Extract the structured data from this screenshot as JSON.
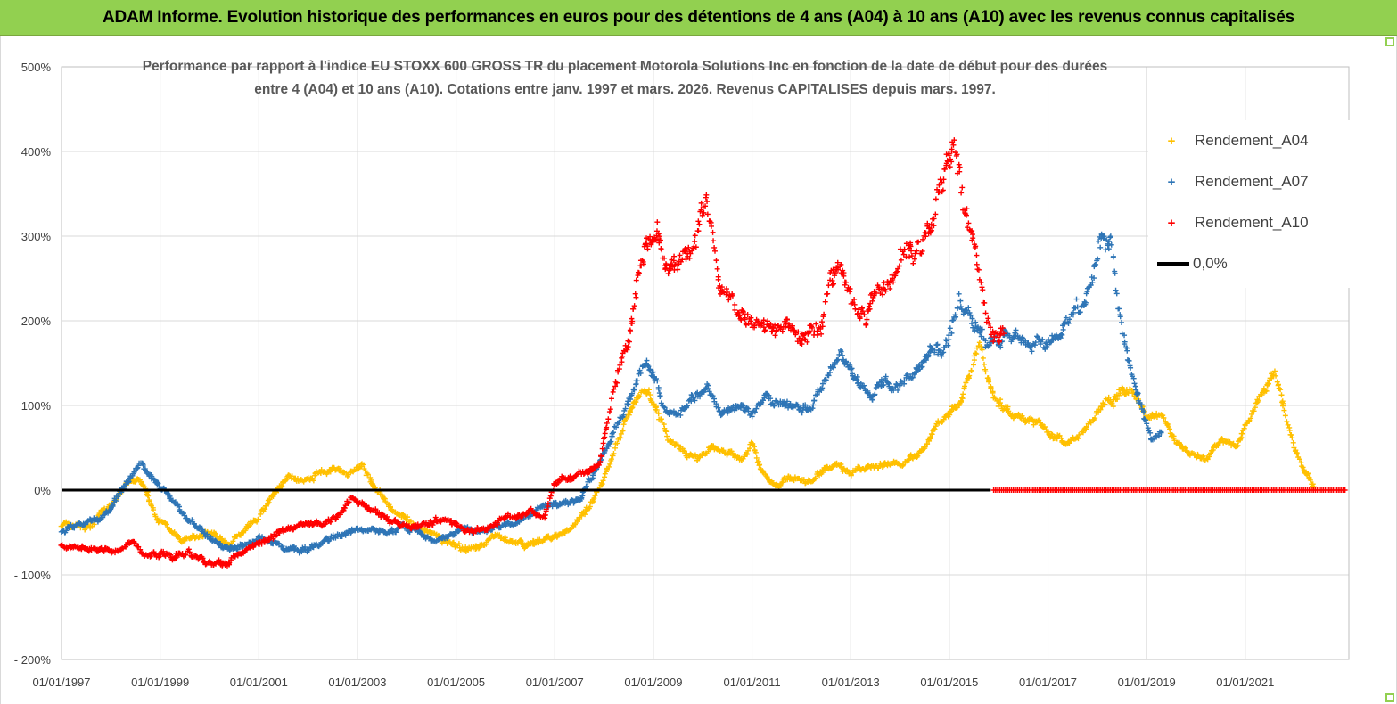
{
  "banner": {
    "title": "ADAM Informe. Evolution historique des performances en euros pour des détentions de 4 ans (A04) à 10 ans (A10) avec les revenus connus capitalisés"
  },
  "colors": {
    "banner_bg": "#92d050",
    "a04": "#ffc000",
    "a07": "#2e75b6",
    "a10": "#ff0000",
    "zero_line": "#000000",
    "grid": "#d9d9d9"
  },
  "chart_data": {
    "type": "scatter",
    "title_lines": [
      "Performance par rapport à l'indice EU STOXX 600 GROSS TR  du placement Motorola Solutions Inc en fonction de la date de début pour des durées",
      "entre 4 (A04) et 10 ans (A10). Cotations entre janv. 1997 et mars. 2026. Revenus CAPITALISES depuis mars. 1997."
    ],
    "ylim": [
      -200,
      500
    ],
    "yticks": [
      500,
      400,
      300,
      200,
      100,
      0,
      -100,
      -200
    ],
    "ytick_labels": [
      "500%",
      "400%",
      "300%",
      "200%",
      "100%",
      "0%",
      "- 100%",
      "- 200%"
    ],
    "xlim": [
      1997.0,
      2023.1
    ],
    "xticks": [
      1997,
      1999,
      2001,
      2003,
      2005,
      2007,
      2009,
      2011,
      2013,
      2015,
      2017,
      2019,
      2021
    ],
    "xtick_labels": [
      "01/01/1997",
      "01/01/1999",
      "01/01/2001",
      "01/01/2003",
      "01/01/2005",
      "01/01/2007",
      "01/01/2009",
      "01/01/2011",
      "01/01/2013",
      "01/01/2015",
      "01/01/2017",
      "01/01/2019",
      "01/01/2021"
    ],
    "legend_position": "top-right",
    "series": [
      {
        "name": "Rendement_A04",
        "key": "a04",
        "x": [
          1997.0,
          1997.5,
          1998.0,
          1998.3,
          1998.6,
          1998.9,
          1999.2,
          1999.5,
          1999.8,
          2000.1,
          2000.4,
          2000.7,
          2001.0,
          2001.3,
          2001.6,
          2001.9,
          2002.2,
          2002.5,
          2002.8,
          2003.1,
          2003.4,
          2003.7,
          2004.0,
          2004.3,
          2004.6,
          2004.9,
          2005.2,
          2005.5,
          2005.8,
          2006.1,
          2006.4,
          2006.7,
          2007.0,
          2007.3,
          2007.6,
          2007.9,
          2008.1,
          2008.3,
          2008.5,
          2008.7,
          2008.9,
          2009.1,
          2009.3,
          2009.6,
          2009.9,
          2010.2,
          2010.5,
          2010.8,
          2011.0,
          2011.2,
          2011.5,
          2011.8,
          2012.1,
          2012.4,
          2012.7,
          2013.0,
          2013.3,
          2013.6,
          2013.9,
          2014.2,
          2014.5,
          2014.8,
          2015.0,
          2015.2,
          2015.4,
          2015.6,
          2015.9,
          2016.2,
          2016.5,
          2016.8,
          2017.1,
          2017.4,
          2017.7,
          2017.9,
          2018.1,
          2018.4,
          2018.7,
          2019.0,
          2019.3,
          2019.6,
          2019.9,
          2020.2,
          2020.5,
          2020.8,
          2021.0,
          2021.2,
          2021.4,
          2021.6,
          2021.8,
          2022.0,
          2022.2,
          2022.4
        ],
        "y": [
          -40,
          -45,
          -20,
          5,
          10,
          -30,
          -50,
          -60,
          -55,
          -50,
          -65,
          -45,
          -30,
          -5,
          15,
          10,
          20,
          25,
          15,
          30,
          0,
          -20,
          -35,
          -45,
          -55,
          -65,
          -70,
          -65,
          -55,
          -60,
          -65,
          -60,
          -55,
          -45,
          -25,
          0,
          30,
          60,
          90,
          110,
          120,
          95,
          60,
          45,
          35,
          50,
          45,
          35,
          55,
          20,
          5,
          15,
          10,
          20,
          30,
          20,
          25,
          30,
          30,
          35,
          50,
          80,
          90,
          100,
          140,
          170,
          110,
          95,
          85,
          80,
          65,
          55,
          70,
          85,
          100,
          110,
          120,
          85,
          90,
          55,
          45,
          35,
          60,
          50,
          75,
          100,
          120,
          140,
          90,
          50,
          20,
          5
        ]
      },
      {
        "name": "Rendement_A07",
        "key": "a07",
        "x": [
          1997.0,
          1997.4,
          1997.8,
          1998.1,
          1998.4,
          1998.6,
          1998.9,
          1999.2,
          1999.5,
          1999.8,
          2000.1,
          2000.4,
          2000.7,
          2001.0,
          2001.3,
          2001.6,
          2001.9,
          2002.2,
          2002.5,
          2002.8,
          2003.0,
          2003.3,
          2003.6,
          2003.9,
          2004.2,
          2004.5,
          2004.8,
          2005.1,
          2005.4,
          2005.7,
          2006.0,
          2006.3,
          2006.6,
          2006.9,
          2007.2,
          2007.5,
          2007.8,
          2008.0,
          2008.2,
          2008.4,
          2008.6,
          2008.8,
          2009.0,
          2009.2,
          2009.5,
          2009.8,
          2010.1,
          2010.4,
          2010.7,
          2011.0,
          2011.3,
          2011.6,
          2011.9,
          2012.2,
          2012.5,
          2012.8,
          2013.1,
          2013.4,
          2013.7,
          2014.0,
          2014.3,
          2014.6,
          2014.9,
          2015.2,
          2015.5,
          2015.8,
          2016.1,
          2016.4,
          2016.7,
          2017.0,
          2017.3,
          2017.6,
          2017.9,
          2018.1,
          2018.3,
          2018.5,
          2018.7,
          2018.9,
          2019.1,
          2019.3
        ],
        "y": [
          -50,
          -40,
          -35,
          -10,
          15,
          30,
          10,
          -10,
          -30,
          -45,
          -60,
          -70,
          -65,
          -55,
          -60,
          -70,
          -70,
          -65,
          -55,
          -50,
          -45,
          -45,
          -50,
          -40,
          -50,
          -60,
          -55,
          -45,
          -50,
          -45,
          -40,
          -35,
          -25,
          -20,
          -15,
          -10,
          20,
          45,
          70,
          90,
          120,
          150,
          140,
          100,
          90,
          110,
          120,
          90,
          100,
          90,
          110,
          100,
          100,
          95,
          130,
          160,
          130,
          110,
          130,
          120,
          140,
          170,
          160,
          230,
          200,
          170,
          180,
          180,
          170,
          175,
          190,
          210,
          240,
          300,
          280,
          190,
          130,
          100,
          60,
          70
        ]
      },
      {
        "name": "Rendement_A10",
        "key": "a10",
        "x": [
          1997.0,
          1997.4,
          1997.8,
          1998.1,
          1998.4,
          1998.7,
          1999.0,
          1999.3,
          1999.6,
          1999.9,
          2000.2,
          2000.5,
          2000.8,
          2001.1,
          2001.4,
          2001.7,
          2002.0,
          2002.3,
          2002.6,
          2002.9,
          2003.2,
          2003.5,
          2003.8,
          2004.1,
          2004.4,
          2004.7,
          2005.0,
          2005.3,
          2005.6,
          2005.9,
          2006.2,
          2006.5,
          2006.8,
          2007.0,
          2007.3,
          2007.6,
          2007.9,
          2008.1,
          2008.3,
          2008.5,
          2008.7,
          2008.9,
          2009.1,
          2009.3,
          2009.6,
          2009.9,
          2010.1,
          2010.3,
          2010.6,
          2010.9,
          2011.2,
          2011.5,
          2011.8,
          2012.1,
          2012.4,
          2012.6,
          2012.8,
          2013.0,
          2013.3,
          2013.6,
          2013.9,
          2014.1,
          2014.3,
          2014.5,
          2014.7,
          2014.9,
          2015.1,
          2015.3,
          2015.5,
          2015.7,
          2015.9,
          2016.1
        ],
        "y": [
          -65,
          -70,
          -70,
          -70,
          -60,
          -75,
          -75,
          -80,
          -75,
          -85,
          -85,
          -80,
          -70,
          -60,
          -50,
          -45,
          -40,
          -40,
          -30,
          -10,
          -20,
          -30,
          -40,
          -45,
          -40,
          -35,
          -40,
          -50,
          -45,
          -35,
          -30,
          -25,
          -30,
          10,
          15,
          20,
          30,
          90,
          140,
          180,
          250,
          290,
          310,
          250,
          270,
          300,
          340,
          250,
          220,
          210,
          190,
          180,
          200,
          180,
          190,
          250,
          260,
          230,
          200,
          250,
          260,
          290,
          280,
          300,
          330,
          380,
          400,
          330,
          300,
          220,
          180,
          190
        ]
      }
    ],
    "zero_fill_after": 2016.2,
    "legend": {
      "items": [
        "Rendement_A04",
        "Rendement_A07",
        "Rendement_A10"
      ],
      "zero_line_label": "0,0%"
    }
  }
}
